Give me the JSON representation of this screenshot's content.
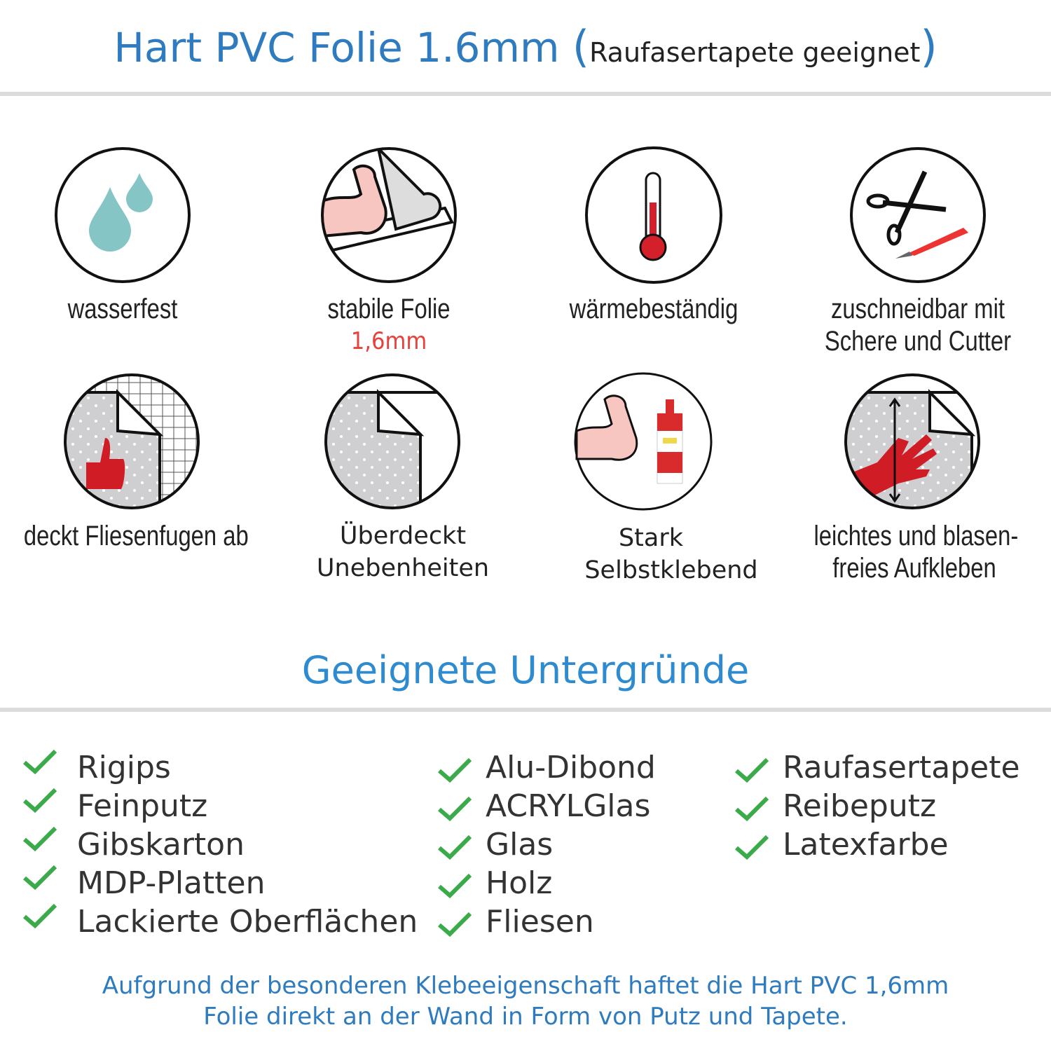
{
  "header": {
    "title": "Hart PVC Folie 1.6mm",
    "subtitle": "Raufasertapete geeignet",
    "open_paren": "(",
    "close_paren": ")"
  },
  "colors": {
    "title": "#2e7bbf",
    "check": "#3aaa4a",
    "accent_red": "#e8413c"
  },
  "features": [
    {
      "icon": "water-drops-icon",
      "label": "wasserfest"
    },
    {
      "icon": "strong-arm-foil-icon",
      "label": "stabile Folie",
      "sublabel": "1,6mm"
    },
    {
      "icon": "thermometer-icon",
      "label": "wärmebeständig"
    },
    {
      "icon": "scissors-cutter-icon",
      "label": "zuschneidbar mit",
      "label2": "Schere und Cutter"
    },
    {
      "icon": "thumbs-up-tiles-icon",
      "label": "deckt Fliesenfugen ab"
    },
    {
      "icon": "foil-corner-icon",
      "label": "Überdeckt",
      "label2": "Unebenheiten"
    },
    {
      "icon": "strong-arm-glue-icon",
      "label": "Stark",
      "label2": "Selbstklebend"
    },
    {
      "icon": "hand-smoothing-icon",
      "label": "leichtes und blasen-",
      "label2": "freies Aufkleben"
    }
  ],
  "surfaces": {
    "title": "Geeignete Untergründe",
    "columns": [
      [
        "Rigips",
        "Feinputz",
        "Gibskarton",
        "MDP-Platten",
        "Lackierte Oberflächen"
      ],
      [
        "Alu-Dibond",
        "ACRYLGlas",
        "Glas",
        "Holz",
        "Fliesen"
      ],
      [
        "Raufasertapete",
        "Reibeputz",
        "Latexfarbe"
      ]
    ]
  },
  "footer": {
    "line1": "Aufgrund der besonderen Klebeeigenschaft haftet die Hart PVC 1,6mm",
    "line2": "Folie direkt an der Wand in Form von Putz und Tapete."
  }
}
